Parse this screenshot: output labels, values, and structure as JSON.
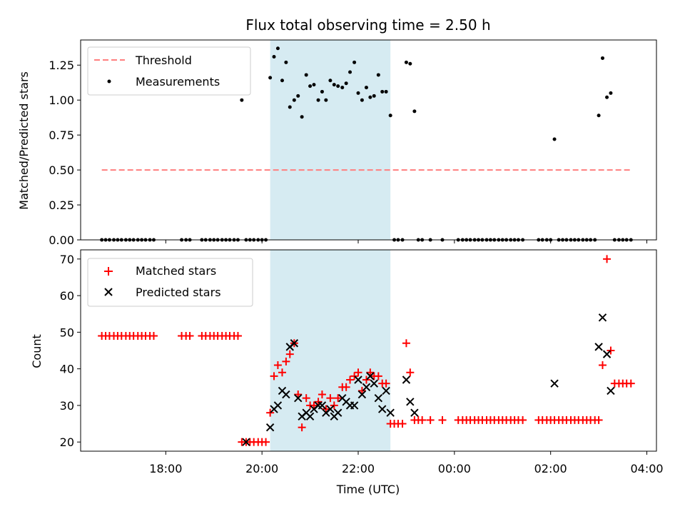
{
  "chart_data": [
    {
      "type": "scatter",
      "title": "Flux total observing time = 2.50 h",
      "xlabel": "",
      "ylabel": "Matched/Predicted stars",
      "xlim_hours": [
        16.23,
        28.2
      ],
      "ylim": [
        0,
        1.43
      ],
      "x_unit": "hours UTC (values past 24 are next day)",
      "yticks": [
        0.0,
        0.25,
        0.5,
        0.75,
        1.0,
        1.25
      ],
      "ytick_labels": [
        "0.00",
        "0.25",
        "0.50",
        "0.75",
        "1.00",
        "1.25"
      ],
      "xticks": [
        18,
        20,
        22,
        24,
        26,
        28
      ],
      "highlight_span": {
        "x0": 20.17,
        "x1": 22.67,
        "color": "#add8e6"
      },
      "threshold": {
        "label": "Threshold",
        "y": 0.5,
        "x0": 16.67,
        "x1": 27.67,
        "color": "#ff7f7f"
      },
      "legend": {
        "placement": "upper left",
        "entries": [
          "Threshold",
          "Measurements"
        ]
      },
      "series": [
        {
          "name": "Measurements",
          "color": "#000000",
          "x": [
            16.67,
            16.75,
            16.83,
            16.92,
            17.0,
            17.08,
            17.17,
            17.25,
            17.33,
            17.42,
            17.5,
            17.58,
            17.67,
            17.75,
            18.33,
            18.42,
            18.5,
            18.75,
            18.83,
            18.92,
            19.0,
            19.08,
            19.17,
            19.25,
            19.33,
            19.42,
            19.5,
            19.58,
            19.67,
            19.75,
            19.83,
            19.92,
            20.0,
            20.08,
            20.17,
            20.25,
            20.33,
            20.42,
            20.5,
            20.58,
            20.67,
            20.75,
            20.83,
            20.92,
            21.0,
            21.08,
            21.17,
            21.25,
            21.33,
            21.42,
            21.5,
            21.58,
            21.67,
            21.75,
            21.83,
            21.92,
            22.0,
            22.08,
            22.17,
            22.25,
            22.33,
            22.42,
            22.5,
            22.58,
            22.67,
            22.75,
            22.83,
            22.92,
            23.0,
            23.08,
            23.17,
            23.25,
            23.33,
            23.5,
            23.75,
            24.08,
            24.17,
            24.25,
            24.33,
            24.42,
            24.5,
            24.58,
            24.67,
            24.75,
            24.83,
            24.92,
            25.0,
            25.08,
            25.17,
            25.25,
            25.33,
            25.42,
            25.75,
            25.83,
            25.92,
            26.0,
            26.08,
            26.17,
            26.25,
            26.33,
            26.42,
            26.5,
            26.58,
            26.67,
            26.75,
            26.83,
            26.92,
            27.0,
            27.08,
            27.17,
            27.25,
            27.33,
            27.42,
            27.5,
            27.58,
            27.67
          ],
          "y": [
            0,
            0,
            0,
            0,
            0,
            0,
            0,
            0,
            0,
            0,
            0,
            0,
            0,
            0,
            0,
            0,
            0,
            0,
            0,
            0,
            0,
            0,
            0,
            0,
            0,
            0,
            0,
            1.0,
            0,
            0,
            0,
            0,
            0,
            0,
            1.16,
            1.31,
            1.37,
            1.14,
            1.27,
            0.95,
            1.0,
            1.03,
            0.88,
            1.18,
            1.1,
            1.11,
            1.0,
            1.06,
            1.0,
            1.14,
            1.11,
            1.1,
            1.09,
            1.12,
            1.2,
            1.27,
            1.05,
            1.0,
            1.09,
            1.02,
            1.03,
            1.18,
            1.06,
            1.06,
            0.89,
            0,
            0,
            0,
            1.27,
            1.26,
            0.92,
            0,
            0,
            0,
            0,
            0,
            0,
            0,
            0,
            0,
            0,
            0,
            0,
            0,
            0,
            0,
            0,
            0,
            0,
            0,
            0,
            0,
            0,
            0,
            0,
            0,
            0.72,
            0,
            0,
            0,
            0,
            0,
            0,
            0,
            0,
            0,
            0,
            0.89,
            1.3,
            1.02,
            1.05,
            0,
            0,
            0,
            0,
            0
          ]
        }
      ]
    },
    {
      "type": "scatter",
      "title": "",
      "xlabel": "Time (UTC)",
      "ylabel": "Count",
      "xlim_hours": [
        16.23,
        28.2
      ],
      "ylim": [
        17.5,
        72.5
      ],
      "x_unit": "hours UTC (values past 24 are next day)",
      "yticks": [
        20,
        30,
        40,
        50,
        60,
        70
      ],
      "ytick_labels": [
        "20",
        "30",
        "40",
        "50",
        "60",
        "70"
      ],
      "xticks": [
        18,
        20,
        22,
        24,
        26,
        28
      ],
      "xtick_labels": [
        "18:00",
        "20:00",
        "22:00",
        "00:00",
        "02:00",
        "04:00"
      ],
      "highlight_span": {
        "x0": 20.17,
        "x1": 22.67,
        "color": "#add8e6"
      },
      "legend": {
        "placement": "upper left",
        "entries": [
          "Matched stars",
          "Predicted stars"
        ]
      },
      "series": [
        {
          "name": "Matched stars",
          "marker": "+",
          "color": "#ff0000",
          "x": [
            16.67,
            16.75,
            16.83,
            16.92,
            17.0,
            17.08,
            17.17,
            17.25,
            17.33,
            17.42,
            17.5,
            17.58,
            17.67,
            17.75,
            18.33,
            18.42,
            18.5,
            18.75,
            18.83,
            18.92,
            19.0,
            19.08,
            19.17,
            19.25,
            19.33,
            19.42,
            19.5,
            19.58,
            19.67,
            19.75,
            19.83,
            19.92,
            20.0,
            20.08,
            20.17,
            20.25,
            20.33,
            20.42,
            20.5,
            20.58,
            20.67,
            20.75,
            20.83,
            20.92,
            21.0,
            21.08,
            21.17,
            21.25,
            21.33,
            21.42,
            21.5,
            21.58,
            21.67,
            21.75,
            21.83,
            21.92,
            22.0,
            22.08,
            22.17,
            22.25,
            22.33,
            22.42,
            22.5,
            22.58,
            22.67,
            22.75,
            22.83,
            22.92,
            23.0,
            23.08,
            23.17,
            23.25,
            23.33,
            23.5,
            23.75,
            24.08,
            24.17,
            24.25,
            24.33,
            24.42,
            24.5,
            24.58,
            24.67,
            24.75,
            24.83,
            24.92,
            25.0,
            25.08,
            25.17,
            25.25,
            25.33,
            25.42,
            25.75,
            25.83,
            25.92,
            26.0,
            26.08,
            26.17,
            26.25,
            26.33,
            26.42,
            26.5,
            26.58,
            26.67,
            26.75,
            26.83,
            26.92,
            27.0,
            27.08,
            27.17,
            27.25,
            27.33,
            27.42,
            27.5,
            27.58,
            27.67
          ],
          "y": [
            49,
            49,
            49,
            49,
            49,
            49,
            49,
            49,
            49,
            49,
            49,
            49,
            49,
            49,
            49,
            49,
            49,
            49,
            49,
            49,
            49,
            49,
            49,
            49,
            49,
            49,
            49,
            20,
            20,
            20,
            20,
            20,
            20,
            20,
            28,
            38,
            41,
            39,
            42,
            44,
            47,
            33,
            24,
            32,
            30,
            30,
            31,
            33,
            29,
            32,
            30,
            32,
            35,
            35,
            37,
            38,
            39,
            34,
            37,
            39,
            38,
            38,
            36,
            36,
            25,
            25,
            25,
            25,
            47,
            39,
            26,
            26,
            26,
            26,
            26,
            26,
            26,
            26,
            26,
            26,
            26,
            26,
            26,
            26,
            26,
            26,
            26,
            26,
            26,
            26,
            26,
            26,
            26,
            26,
            26,
            26,
            26,
            26,
            26,
            26,
            26,
            26,
            26,
            26,
            26,
            26,
            26,
            26,
            41,
            70,
            45,
            36,
            36,
            36,
            36,
            36
          ]
        },
        {
          "name": "Predicted stars",
          "marker": "x",
          "color": "#000000",
          "x": [
            19.67,
            20.17,
            20.25,
            20.33,
            20.42,
            20.5,
            20.58,
            20.67,
            20.75,
            20.83,
            20.92,
            21.0,
            21.08,
            21.17,
            21.25,
            21.33,
            21.42,
            21.5,
            21.58,
            21.67,
            21.75,
            21.83,
            21.92,
            22.0,
            22.08,
            22.17,
            22.25,
            22.33,
            22.42,
            22.5,
            22.58,
            22.67,
            23.0,
            23.08,
            23.17,
            26.08,
            27.0,
            27.08,
            27.17,
            27.25
          ],
          "y": [
            20,
            24,
            29,
            30,
            34,
            33,
            46,
            47,
            32,
            27,
            28,
            27,
            29,
            30,
            30,
            28,
            29,
            27,
            28,
            32,
            31,
            30,
            30,
            37,
            33,
            35,
            38,
            36,
            32,
            29,
            34,
            28,
            37,
            31,
            28,
            36,
            46,
            54,
            44,
            34
          ]
        }
      ]
    }
  ]
}
